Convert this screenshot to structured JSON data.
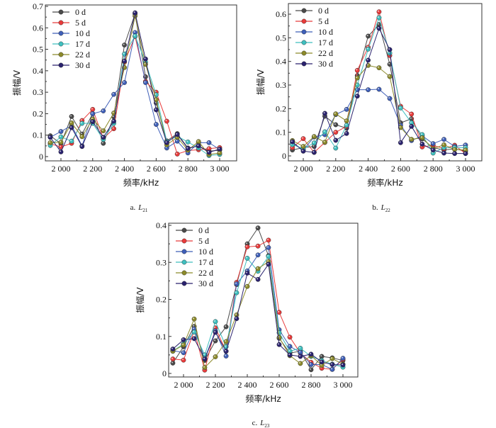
{
  "legend_colors": {
    "0 d": "#4a4a4a",
    "5 d": "#e83a3a",
    "10 d": "#3f5fb8",
    "17 d": "#3fbfbf",
    "22 d": "#8c8a2a",
    "30 d": "#2a226e"
  },
  "chart_data": [
    {
      "type": "line",
      "title": "",
      "caption_prefix": "a.",
      "caption_symbol": "L",
      "caption_sub": "21",
      "xlabel": "频率/kHz",
      "ylabel": "振幅/V",
      "xlim": [
        1933,
        3000
      ],
      "ylim": [
        0,
        0.7
      ],
      "xticks": [
        "2 000",
        "2 200",
        "2 400",
        "2 600",
        "2 800",
        "3 000"
      ],
      "xtick_values": [
        2000,
        2200,
        2400,
        2600,
        2800,
        3000
      ],
      "yticks": [
        "0",
        "0.1",
        "0.2",
        "0.3",
        "0.4",
        "0.5",
        "0.6",
        "0.7"
      ],
      "ytick_values": [
        0,
        0.1,
        0.2,
        0.3,
        0.4,
        0.5,
        0.6,
        0.7
      ],
      "legend": "top-left",
      "x": [
        1933,
        2000,
        2067,
        2133,
        2200,
        2267,
        2333,
        2400,
        2467,
        2533,
        2600,
        2667,
        2733,
        2800,
        2867,
        2933,
        3000
      ],
      "series": [
        {
          "name": "0 d",
          "values": [
            0.097,
            0.06,
            0.187,
            0.105,
            0.2,
            0.062,
            0.185,
            0.52,
            0.665,
            0.372,
            0.25,
            0.073,
            0.107,
            0.04,
            0.05,
            0.025,
            0.03
          ]
        },
        {
          "name": "5 d",
          "values": [
            0.06,
            0.045,
            0.062,
            0.168,
            0.22,
            0.085,
            0.13,
            0.44,
            0.56,
            0.35,
            0.3,
            0.165,
            0.012,
            0.028,
            0.032,
            0.037,
            0.042
          ]
        },
        {
          "name": "10 d",
          "values": [
            0.09,
            0.117,
            0.145,
            0.05,
            0.2,
            0.213,
            0.29,
            0.345,
            0.578,
            0.345,
            0.15,
            0.04,
            0.072,
            0.017,
            0.065,
            0.065,
            0.033
          ]
        },
        {
          "name": "17 d",
          "values": [
            0.052,
            0.092,
            0.072,
            0.155,
            0.155,
            0.08,
            0.155,
            0.478,
            0.562,
            0.44,
            0.288,
            0.07,
            0.095,
            0.068,
            0.04,
            0.005,
            0.01
          ]
        },
        {
          "name": "22 d",
          "values": [
            0.065,
            0.067,
            0.157,
            0.093,
            0.175,
            0.12,
            0.203,
            0.415,
            0.655,
            0.43,
            0.265,
            0.055,
            0.09,
            0.03,
            0.07,
            0.01,
            0.017
          ]
        },
        {
          "name": "30 d",
          "values": [
            0.09,
            0.022,
            0.135,
            0.047,
            0.163,
            0.09,
            0.165,
            0.445,
            0.67,
            0.455,
            0.218,
            0.065,
            0.103,
            0.038,
            0.05,
            0.02,
            0.035
          ]
        }
      ]
    },
    {
      "type": "line",
      "title": "",
      "caption_prefix": "b.",
      "caption_symbol": "L",
      "caption_sub": "22",
      "xlabel": "频率/kHz",
      "ylabel": "振幅/V",
      "xlim": [
        1933,
        3000
      ],
      "ylim": [
        0,
        0.6
      ],
      "xticks": [
        "2 000",
        "2 200",
        "2 400",
        "2 600",
        "2 800",
        "3 000"
      ],
      "xtick_values": [
        2000,
        2200,
        2400,
        2600,
        2800,
        3000
      ],
      "yticks": [
        "0",
        "0.1",
        "0.2",
        "0.3",
        "0.4",
        "0.5",
        "0.6"
      ],
      "ytick_values": [
        0,
        0.1,
        0.2,
        0.3,
        0.4,
        0.5,
        0.6
      ],
      "legend": "top-left",
      "x": [
        1933,
        2000,
        2067,
        2133,
        2200,
        2267,
        2333,
        2400,
        2467,
        2533,
        2600,
        2667,
        2733,
        2800,
        2867,
        2933,
        3000
      ],
      "series": [
        {
          "name": "0 d",
          "values": [
            0.025,
            0.035,
            0.04,
            0.168,
            0.132,
            0.117,
            0.34,
            0.507,
            0.556,
            0.388,
            0.14,
            0.157,
            0.072,
            0.035,
            0.025,
            0.03,
            0.02
          ]
        },
        {
          "name": "5 d",
          "values": [
            0.035,
            0.073,
            0.015,
            0.057,
            0.1,
            0.125,
            0.362,
            0.46,
            0.61,
            0.425,
            0.21,
            0.177,
            0.038,
            0.045,
            0.03,
            0.045,
            0.01
          ]
        },
        {
          "name": "10 d",
          "values": [
            0.055,
            0.025,
            0.08,
            0.09,
            0.175,
            0.197,
            0.28,
            0.28,
            0.282,
            0.243,
            0.13,
            0.065,
            0.085,
            0.052,
            0.07,
            0.04,
            0.046
          ]
        },
        {
          "name": "17 d",
          "values": [
            0.048,
            0.03,
            0.055,
            0.102,
            0.033,
            0.13,
            0.3,
            0.452,
            0.585,
            0.435,
            0.203,
            0.14,
            0.09,
            0.012,
            0.035,
            0.035,
            0.035
          ]
        },
        {
          "name": "22 d",
          "values": [
            0.065,
            0.04,
            0.082,
            0.058,
            0.178,
            0.148,
            0.33,
            0.383,
            0.373,
            0.336,
            0.12,
            0.07,
            0.077,
            0.03,
            0.047,
            0.027,
            0.025
          ]
        },
        {
          "name": "30 d",
          "values": [
            0.06,
            0.02,
            0.015,
            0.18,
            0.066,
            0.095,
            0.253,
            0.405,
            0.54,
            0.45,
            0.056,
            0.125,
            0.05,
            0.025,
            0.012,
            0.01,
            0.01
          ]
        }
      ]
    },
    {
      "type": "line",
      "title": "",
      "caption_prefix": "c.",
      "caption_symbol": "L",
      "caption_sub": "23",
      "xlabel": "频率/kHz",
      "ylabel": "振幅/V",
      "xlim": [
        1933,
        3000
      ],
      "ylim": [
        0,
        0.4
      ],
      "xticks": [
        "2 000",
        "2 200",
        "2 400",
        "2 600",
        "2 800",
        "3 000"
      ],
      "xtick_values": [
        2000,
        2200,
        2400,
        2600,
        2800,
        3000
      ],
      "yticks": [
        "0",
        "0.1",
        "0.2",
        "0.3",
        "0.4"
      ],
      "ytick_values": [
        0,
        0.1,
        0.2,
        0.3,
        0.4
      ],
      "legend": "top-left",
      "x": [
        1933,
        2000,
        2067,
        2133,
        2200,
        2267,
        2333,
        2400,
        2467,
        2533,
        2600,
        2667,
        2733,
        2800,
        2867,
        2933,
        3000
      ],
      "series": [
        {
          "name": "0 d",
          "values": [
            0.028,
            0.072,
            0.127,
            0.035,
            0.088,
            0.126,
            0.24,
            0.35,
            0.393,
            0.318,
            0.095,
            0.055,
            0.06,
            0.01,
            0.046,
            0.042,
            0.035
          ]
        },
        {
          "name": "5 d",
          "values": [
            0.039,
            0.036,
            0.115,
            0.009,
            0.123,
            0.06,
            0.246,
            0.342,
            0.344,
            0.36,
            0.165,
            0.098,
            0.055,
            0.03,
            0.014,
            0.011,
            0.038
          ]
        },
        {
          "name": "10 d",
          "values": [
            0.062,
            0.056,
            0.12,
            0.04,
            0.115,
            0.047,
            0.242,
            0.277,
            0.32,
            0.34,
            0.118,
            0.073,
            0.057,
            0.024,
            0.024,
            0.011,
            0.041
          ]
        },
        {
          "name": "17 d",
          "values": [
            0.06,
            0.08,
            0.112,
            0.05,
            0.14,
            0.072,
            0.218,
            0.311,
            0.276,
            0.316,
            0.11,
            0.06,
            0.068,
            0.046,
            0.035,
            0.025,
            0.017
          ]
        },
        {
          "name": "22 d",
          "values": [
            0.06,
            0.077,
            0.147,
            0.016,
            0.045,
            0.086,
            0.158,
            0.235,
            0.283,
            0.302,
            0.097,
            0.048,
            0.027,
            0.048,
            0.022,
            0.04,
            0.025
          ]
        },
        {
          "name": "30 d",
          "values": [
            0.066,
            0.091,
            0.094,
            0.039,
            0.111,
            0.06,
            0.148,
            0.271,
            0.254,
            0.295,
            0.078,
            0.05,
            0.046,
            0.052,
            0.031,
            0.024,
            0.023
          ]
        }
      ]
    }
  ]
}
